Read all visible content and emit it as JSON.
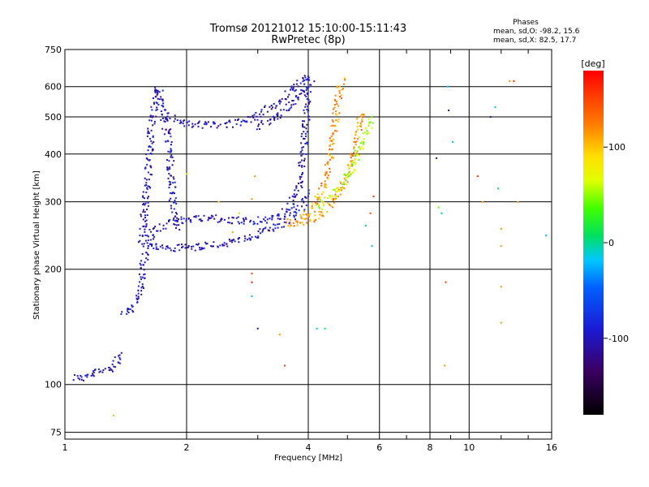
{
  "chart_data": {
    "type": "scatter",
    "title": "Tromsø 20121012 15:10:00-15:11:43",
    "subtitle": "RwPretec (8p)",
    "phase_info": {
      "heading": "Phases",
      "line_o": "mean, sd,O: -98.2, 15.6",
      "line_x": "mean, sd,X:  82.5, 17.7"
    },
    "xlabel": "Frequency [MHz]",
    "ylabel": "Stationary phase Virtual Height [km]",
    "x_scale": "log",
    "y_scale": "log",
    "xlim": [
      1,
      16
    ],
    "ylim": [
      72,
      750
    ],
    "x_ticks": [
      1,
      2,
      4,
      6,
      8,
      10,
      16
    ],
    "x_tick_labels": [
      "1",
      "2",
      "4",
      "6",
      "8",
      "10",
      "16"
    ],
    "y_ticks": [
      75,
      100,
      200,
      300,
      400,
      500,
      600,
      750
    ],
    "y_tick_labels": [
      "75",
      "100",
      "200",
      "300",
      "400",
      "500",
      "600",
      "750"
    ],
    "grid": true,
    "colorbar": {
      "label": "[deg]",
      "range": [
        -180,
        180
      ],
      "ticks": [
        100,
        0,
        -100
      ],
      "tick_labels": [
        "100",
        "0",
        "-100"
      ]
    },
    "traces": [
      {
        "phase": -100,
        "points": [
          [
            1.05,
            105
          ],
          [
            1.08,
            104
          ],
          [
            1.11,
            104
          ],
          [
            1.21,
            108
          ],
          [
            1.25,
            109
          ],
          [
            1.29,
            110
          ],
          [
            1.32,
            112
          ],
          [
            1.35,
            115
          ],
          [
            1.37,
            119
          ],
          [
            1.38,
            121
          ]
        ]
      },
      {
        "phase": -100,
        "points": [
          [
            1.39,
            153
          ],
          [
            1.43,
            153
          ],
          [
            1.47,
            157
          ],
          [
            1.5,
            165
          ],
          [
            1.53,
            178
          ],
          [
            1.56,
            200
          ],
          [
            1.58,
            225
          ],
          [
            1.6,
            240
          ],
          [
            1.63,
            246
          ],
          [
            1.66,
            250
          ],
          [
            1.7,
            255
          ],
          [
            1.75,
            258
          ],
          [
            1.8,
            262
          ],
          [
            1.85,
            266
          ],
          [
            1.9,
            268
          ],
          [
            2.0,
            271
          ],
          [
            2.2,
            273
          ],
          [
            2.4,
            270
          ],
          [
            2.6,
            268
          ],
          [
            2.8,
            268
          ],
          [
            3.0,
            268
          ],
          [
            3.2,
            270
          ],
          [
            3.4,
            275
          ],
          [
            3.55,
            285
          ],
          [
            3.7,
            305
          ],
          [
            3.8,
            330
          ],
          [
            3.88,
            380
          ],
          [
            3.93,
            450
          ],
          [
            3.97,
            560
          ],
          [
            4.0,
            640
          ]
        ]
      },
      {
        "phase": -100,
        "points": [
          [
            1.55,
            240
          ],
          [
            1.57,
            270
          ],
          [
            1.58,
            300
          ],
          [
            1.6,
            330
          ],
          [
            1.61,
            360
          ],
          [
            1.62,
            400
          ],
          [
            1.63,
            440
          ],
          [
            1.64,
            480
          ],
          [
            1.66,
            520
          ],
          [
            1.68,
            560
          ],
          [
            1.7,
            600
          ],
          [
            1.72,
            560
          ],
          [
            1.75,
            520
          ],
          [
            1.8,
            500
          ],
          [
            1.85,
            500
          ],
          [
            1.9,
            490
          ],
          [
            2.0,
            480
          ],
          [
            2.2,
            477
          ],
          [
            2.4,
            476
          ],
          [
            2.6,
            480
          ],
          [
            2.8,
            490
          ],
          [
            3.0,
            505
          ],
          [
            3.2,
            525
          ],
          [
            3.4,
            550
          ],
          [
            3.6,
            580
          ],
          [
            3.8,
            610
          ],
          [
            4.0,
            635
          ],
          [
            4.1,
            630
          ]
        ]
      },
      {
        "phase": -100,
        "points": [
          [
            1.6,
            240
          ],
          [
            1.63,
            235
          ],
          [
            1.66,
            230
          ],
          [
            1.7,
            228
          ],
          [
            1.8,
            227
          ],
          [
            1.9,
            227
          ],
          [
            2.0,
            228
          ],
          [
            2.2,
            230
          ],
          [
            2.4,
            232
          ],
          [
            2.6,
            235
          ],
          [
            2.8,
            240
          ],
          [
            3.0,
            247
          ],
          [
            3.2,
            255
          ],
          [
            3.4,
            262
          ],
          [
            3.6,
            270
          ],
          [
            3.8,
            285
          ],
          [
            3.9,
            300
          ],
          [
            4.0,
            320
          ]
        ]
      },
      {
        "phase": -100,
        "points": [
          [
            1.75,
            500
          ],
          [
            1.78,
            470
          ],
          [
            1.8,
            440
          ],
          [
            1.82,
            400
          ],
          [
            1.83,
            360
          ],
          [
            1.84,
            320
          ],
          [
            1.85,
            290
          ],
          [
            1.87,
            270
          ],
          [
            1.9,
            262
          ],
          [
            1.95,
            258
          ]
        ]
      },
      {
        "phase": -100,
        "points": [
          [
            3.0,
            470
          ],
          [
            3.2,
            490
          ],
          [
            3.4,
            510
          ],
          [
            3.6,
            540
          ],
          [
            3.75,
            560
          ],
          [
            3.85,
            580
          ],
          [
            3.95,
            600
          ]
        ]
      },
      {
        "phase": 115,
        "points": [
          [
            3.5,
            265
          ],
          [
            3.7,
            262
          ],
          [
            3.9,
            265
          ],
          [
            4.1,
            272
          ],
          [
            4.3,
            282
          ],
          [
            4.5,
            295
          ],
          [
            4.7,
            312
          ],
          [
            4.9,
            335
          ],
          [
            5.05,
            360
          ],
          [
            5.15,
            390
          ],
          [
            5.25,
            430
          ],
          [
            5.35,
            480
          ],
          [
            5.45,
            520
          ]
        ]
      },
      {
        "phase": 115,
        "points": [
          [
            3.8,
            270
          ],
          [
            4.0,
            280
          ],
          [
            4.2,
            300
          ],
          [
            4.35,
            325
          ],
          [
            4.45,
            355
          ],
          [
            4.55,
            390
          ],
          [
            4.6,
            430
          ],
          [
            4.65,
            480
          ],
          [
            4.7,
            520
          ],
          [
            4.75,
            560
          ],
          [
            4.8,
            600
          ],
          [
            4.85,
            630
          ]
        ]
      },
      {
        "phase": 60,
        "points": [
          [
            4.2,
            290
          ],
          [
            4.4,
            300
          ],
          [
            4.6,
            310
          ],
          [
            4.8,
            330
          ],
          [
            5.0,
            350
          ],
          [
            5.2,
            380
          ],
          [
            5.4,
            420
          ],
          [
            5.6,
            460
          ],
          [
            5.7,
            500
          ]
        ]
      }
    ],
    "sparse_points": [
      [
        1.32,
        83,
        110
      ],
      [
        2.0,
        355,
        60
      ],
      [
        2.4,
        300,
        95
      ],
      [
        2.6,
        250,
        110
      ],
      [
        2.7,
        280,
        95
      ],
      [
        2.9,
        305,
        120
      ],
      [
        2.9,
        195,
        150
      ],
      [
        2.95,
        350,
        115
      ],
      [
        2.9,
        185,
        170
      ],
      [
        2.9,
        170,
        -20
      ],
      [
        3.0,
        140,
        -120
      ],
      [
        3.4,
        135,
        115
      ],
      [
        3.5,
        112,
        160
      ],
      [
        4.2,
        140,
        -20
      ],
      [
        4.4,
        140,
        10
      ],
      [
        5.55,
        260,
        10
      ],
      [
        5.7,
        280,
        150
      ],
      [
        5.8,
        310,
        150
      ],
      [
        5.75,
        230,
        -20
      ],
      [
        8.3,
        390,
        -110
      ],
      [
        8.4,
        290,
        40
      ],
      [
        8.55,
        280,
        -10
      ],
      [
        8.7,
        112,
        115
      ],
      [
        8.75,
        185,
        150
      ],
      [
        8.85,
        600,
        -20
      ],
      [
        8.9,
        520,
        -110
      ],
      [
        9.1,
        430,
        -20
      ],
      [
        10.5,
        350,
        160
      ],
      [
        10.8,
        300,
        115
      ],
      [
        11.3,
        500,
        -115
      ],
      [
        11.6,
        530,
        -20
      ],
      [
        11.8,
        325,
        10
      ],
      [
        12.0,
        255,
        115
      ],
      [
        12.0,
        230,
        115
      ],
      [
        12.0,
        180,
        115
      ],
      [
        12.0,
        145,
        115
      ],
      [
        12.6,
        620,
        115
      ],
      [
        12.9,
        620,
        160
      ],
      [
        13.2,
        300,
        110
      ],
      [
        15.5,
        245,
        -20
      ]
    ]
  }
}
